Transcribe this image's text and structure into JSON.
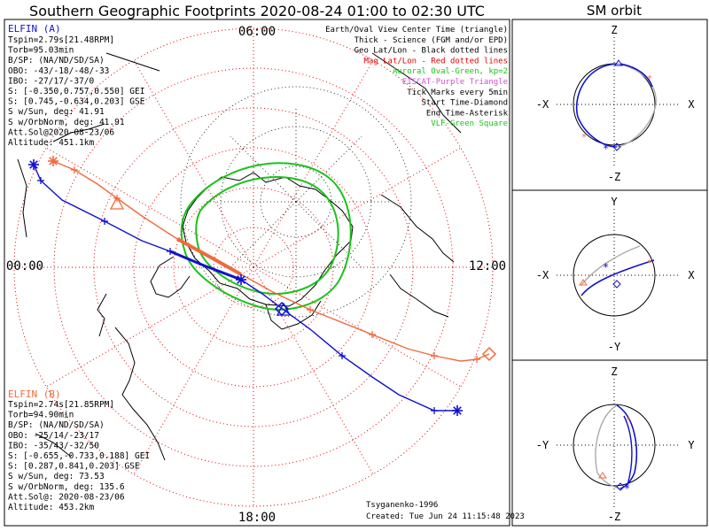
{
  "title": "Southern Geographic Footprints 2020-08-24 01:00 to 02:30 UTC",
  "orbit_title": "SM orbit",
  "clock": {
    "top": "06:00",
    "left": "00:00",
    "right": "12:00",
    "bottom": "18:00"
  },
  "legend": [
    {
      "text": "Earth/Oval View Center Time (triangle)",
      "color": "#000000"
    },
    {
      "text": "Thick - Science (FGM and/or EPD)",
      "color": "#000000"
    },
    {
      "text": "Geo Lat/Lon - Black dotted lines",
      "color": "#000000"
    },
    {
      "text": "Mag Lat/Lon - Red dotted lines",
      "color": "#e00000"
    },
    {
      "text": "Auroral Oval-Green, kp=2",
      "color": "#19c319"
    },
    {
      "text": "EISCAT-Purple Triangle",
      "color": "#d34fd3"
    },
    {
      "text": "Tick Marks every 5min",
      "color": "#000000"
    },
    {
      "text": "Start Time-Diamond",
      "color": "#000000"
    },
    {
      "text": "End Time-Asterisk",
      "color": "#000000"
    },
    {
      "text": "VLF-Green Square",
      "color": "#19c319"
    }
  ],
  "elfin_a": {
    "name": "ELFIN (A)",
    "color": "#1010d0",
    "lines": [
      "Tspin=2.79s[21.48RPM]",
      "Torb=95.03min",
      "B/SP: (NA/ND/SD/SA)",
      "OBO: -43/-18/-48/-33",
      "IBO: -27/17/-37/0",
      "S: [-0.350,0.757,0.550] GEI",
      "S: [0.745,-0.634,0.203] GSE",
      "S w/Sun, deg: 41.91",
      "S w/OrbNorm, deg: 41.91",
      "Att.Sol@2020-08-23/06",
      "Altitude: 451.1km"
    ]
  },
  "elfin_b": {
    "name": "ELFIN (B)",
    "color": "#f06a3c",
    "lines": [
      "Tspin=2.74s[21.85RPM]",
      "Torb=94.90min",
      "B/SP: (NA/ND/SD/SA)",
      "OBO: -25/14/-23/17",
      "IBO: -35/43/-32/50",
      "S: [-0.655,-0.733,0.188] GEI",
      "S: [0.287,0.841,0.203] GSE",
      "S w/Sun, deg: 73.53",
      "S w/OrbNorm, deg: 135.6",
      "Att.Sol@: 2020-08-23/06",
      "Altitude: 453.2km"
    ]
  },
  "footer": {
    "model": "Tsyganenko-1996",
    "created": "Created: Tue Jun 24 11:15:48 2023"
  },
  "sm_panels": [
    {
      "top": "Z",
      "bottom": "-Z",
      "left": "-X",
      "right": "X"
    },
    {
      "top": "Y",
      "bottom": "-Y",
      "left": "-X",
      "right": "X"
    },
    {
      "top": "Z",
      "bottom": "-Z",
      "left": "-Y",
      "right": "Y"
    }
  ],
  "colors": {
    "red_grid": "#e00000",
    "green": "#19c319",
    "blue": "#1010d0",
    "orange": "#f06a3c",
    "grey": "#aaaaaa"
  }
}
